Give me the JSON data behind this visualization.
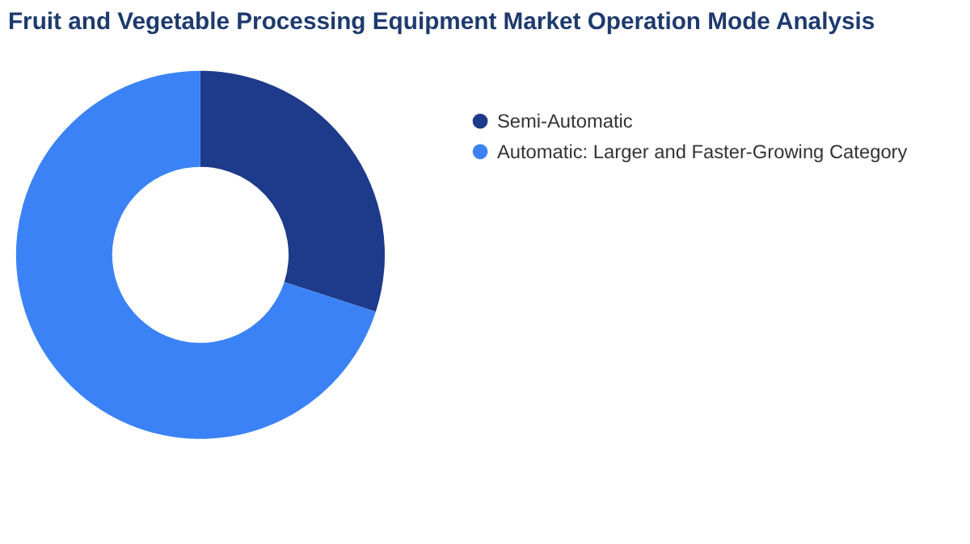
{
  "chart_data": {
    "type": "donut",
    "title": "Fruit and Vegetable Processing Equipment Market Operation Mode Analysis",
    "categories": [
      "Semi-Automatic",
      "Automatic:  Larger and Faster-Growing Category"
    ],
    "values": [
      30,
      70
    ],
    "colors": [
      "#1e3a8a",
      "#3b82f6"
    ],
    "legend": "right"
  }
}
